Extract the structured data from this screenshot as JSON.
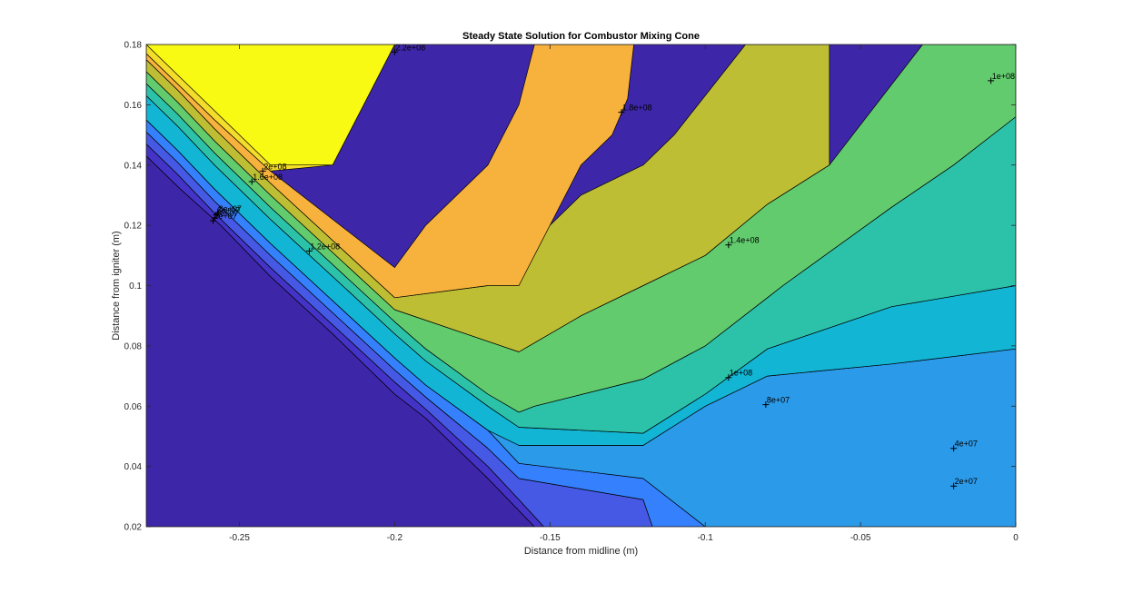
{
  "chart_data": {
    "type": "contour",
    "title": "Steady State Solution for Combustor Mixing Cone",
    "xlabel": "Distance from midline (m)",
    "ylabel": "Distance from igniter (m)",
    "xlim": [
      -0.28,
      0
    ],
    "ylim": [
      0.02,
      0.18
    ],
    "xticks": [
      -0.25,
      -0.2,
      -0.15,
      -0.1,
      -0.05,
      0
    ],
    "xtick_labels": [
      "-0.25",
      "-0.2",
      "-0.15",
      "-0.1",
      "-0.05",
      "0"
    ],
    "yticks": [
      0.02,
      0.04,
      0.06,
      0.08,
      0.1,
      0.12,
      0.14,
      0.16,
      0.18
    ],
    "ytick_labels": [
      "0.02",
      "0.04",
      "0.06",
      "0.08",
      "0.1",
      "0.12",
      "0.14",
      "0.16",
      "0.18"
    ],
    "grid": false,
    "colormap": "parula",
    "levels": [
      20000000,
      40000000,
      60000000,
      80000000,
      100000000,
      120000000,
      140000000,
      160000000,
      180000000,
      200000000,
      220000000
    ],
    "band_colors": [
      "#3e26a8",
      "#4433c7",
      "#4659e5",
      "#3580fd",
      "#2b9ae9",
      "#12b5d4",
      "#2cc2a9",
      "#62cb6e",
      "#bdbe34",
      "#f6b23c",
      "#f4dc2a",
      "#f9fa14"
    ],
    "band_polygons": [
      [
        [
          -0.28,
          0.143
        ],
        [
          -0.269,
          0.132
        ],
        [
          -0.256,
          0.12
        ],
        [
          -0.24,
          0.103
        ],
        [
          -0.22,
          0.084
        ],
        [
          -0.2,
          0.064
        ],
        [
          -0.19,
          0.056
        ],
        [
          -0.17,
          0.036
        ],
        [
          -0.155,
          0.02
        ],
        [
          -0.28,
          0.02
        ]
      ],
      [
        [
          -0.28,
          0.147
        ],
        [
          -0.27,
          0.137
        ],
        [
          -0.258,
          0.124
        ],
        [
          -0.24,
          0.106
        ],
        [
          -0.22,
          0.087
        ],
        [
          -0.2,
          0.068
        ],
        [
          -0.19,
          0.059
        ],
        [
          -0.17,
          0.04
        ],
        [
          -0.16,
          0.029
        ],
        [
          -0.152,
          0.02
        ],
        [
          -0.155,
          0.02
        ],
        [
          -0.17,
          0.036
        ],
        [
          -0.19,
          0.056
        ],
        [
          -0.2,
          0.064
        ],
        [
          -0.22,
          0.084
        ],
        [
          -0.24,
          0.103
        ],
        [
          -0.256,
          0.12
        ],
        [
          -0.269,
          0.132
        ],
        [
          -0.28,
          0.143
        ]
      ],
      [
        [
          -0.28,
          0.151
        ],
        [
          -0.27,
          0.141
        ],
        [
          -0.258,
          0.128
        ],
        [
          -0.24,
          0.11
        ],
        [
          -0.22,
          0.091
        ],
        [
          -0.2,
          0.072
        ],
        [
          -0.19,
          0.063
        ],
        [
          -0.17,
          0.046
        ],
        [
          -0.16,
          0.036
        ],
        [
          -0.12,
          0.029
        ],
        [
          -0.117,
          0.02
        ],
        [
          -0.152,
          0.02
        ],
        [
          -0.16,
          0.029
        ],
        [
          -0.17,
          0.04
        ],
        [
          -0.19,
          0.059
        ],
        [
          -0.2,
          0.068
        ],
        [
          -0.22,
          0.087
        ],
        [
          -0.24,
          0.106
        ],
        [
          -0.258,
          0.124
        ],
        [
          -0.27,
          0.137
        ],
        [
          -0.28,
          0.147
        ]
      ],
      [
        [
          -0.28,
          0.155
        ],
        [
          -0.27,
          0.145
        ],
        [
          -0.258,
          0.132
        ],
        [
          -0.24,
          0.114
        ],
        [
          -0.22,
          0.095
        ],
        [
          -0.2,
          0.076
        ],
        [
          -0.19,
          0.067
        ],
        [
          -0.17,
          0.052
        ],
        [
          -0.16,
          0.041
        ],
        [
          -0.12,
          0.036
        ],
        [
          -0.1,
          0.02
        ],
        [
          -0.117,
          0.02
        ],
        [
          -0.12,
          0.029
        ],
        [
          -0.16,
          0.036
        ],
        [
          -0.17,
          0.046
        ],
        [
          -0.19,
          0.063
        ],
        [
          -0.2,
          0.072
        ],
        [
          -0.22,
          0.091
        ],
        [
          -0.24,
          0.11
        ],
        [
          -0.258,
          0.128
        ],
        [
          -0.27,
          0.141
        ],
        [
          -0.28,
          0.151
        ]
      ],
      [
        [
          -0.28,
          0.159
        ],
        [
          -0.27,
          0.149
        ],
        [
          -0.258,
          0.136
        ],
        [
          -0.24,
          0.118
        ],
        [
          -0.22,
          0.099
        ],
        [
          -0.2,
          0.08
        ],
        [
          -0.19,
          0.071
        ],
        [
          -0.17,
          0.056
        ],
        [
          -0.16,
          0.047
        ],
        [
          -0.12,
          0.047
        ],
        [
          -0.1,
          0.06
        ],
        [
          -0.08,
          0.07
        ],
        [
          -0.04,
          0.074
        ],
        [
          0,
          0.079
        ],
        [
          0,
          0.02
        ],
        [
          -0.1,
          0.02
        ],
        [
          -0.12,
          0.036
        ],
        [
          -0.16,
          0.041
        ],
        [
          -0.17,
          0.052
        ],
        [
          -0.19,
          0.067
        ],
        [
          -0.2,
          0.076
        ],
        [
          -0.22,
          0.095
        ],
        [
          -0.24,
          0.114
        ],
        [
          -0.258,
          0.132
        ],
        [
          -0.27,
          0.145
        ],
        [
          -0.28,
          0.155
        ]
      ],
      [
        [
          -0.28,
          0.163
        ],
        [
          -0.27,
          0.153
        ],
        [
          -0.258,
          0.14
        ],
        [
          -0.24,
          0.122
        ],
        [
          -0.22,
          0.103
        ],
        [
          -0.2,
          0.084
        ],
        [
          -0.19,
          0.075
        ],
        [
          -0.17,
          0.06
        ],
        [
          -0.16,
          0.053
        ],
        [
          -0.12,
          0.051
        ],
        [
          -0.1,
          0.064
        ],
        [
          -0.08,
          0.079
        ],
        [
          -0.04,
          0.093
        ],
        [
          0,
          0.1
        ],
        [
          0,
          0.079
        ],
        [
          -0.04,
          0.074
        ],
        [
          -0.08,
          0.07
        ],
        [
          -0.1,
          0.06
        ],
        [
          -0.12,
          0.047
        ],
        [
          -0.16,
          0.047
        ],
        [
          -0.17,
          0.052
        ],
        [
          -0.19,
          0.067
        ],
        [
          -0.2,
          0.076
        ],
        [
          -0.22,
          0.095
        ],
        [
          -0.24,
          0.114
        ],
        [
          -0.258,
          0.132
        ],
        [
          -0.27,
          0.145
        ],
        [
          -0.28,
          0.155
        ],
        [
          -0.28,
          0.159
        ]
      ],
      [
        [
          -0.28,
          0.167
        ],
        [
          -0.27,
          0.157
        ],
        [
          -0.258,
          0.144
        ],
        [
          -0.24,
          0.126
        ],
        [
          -0.22,
          0.107
        ],
        [
          -0.2,
          0.088
        ],
        [
          -0.19,
          0.079
        ],
        [
          -0.17,
          0.064
        ],
        [
          -0.16,
          0.058
        ],
        [
          -0.155,
          0.06
        ],
        [
          -0.12,
          0.069
        ],
        [
          -0.1,
          0.08
        ],
        [
          -0.08,
          0.096
        ],
        [
          -0.075,
          0.1
        ],
        [
          -0.04,
          0.126
        ],
        [
          -0.02,
          0.14
        ],
        [
          0,
          0.156
        ],
        [
          0,
          0.1
        ],
        [
          -0.04,
          0.093
        ],
        [
          -0.08,
          0.079
        ],
        [
          -0.1,
          0.064
        ],
        [
          -0.12,
          0.051
        ],
        [
          -0.16,
          0.053
        ],
        [
          -0.17,
          0.06
        ],
        [
          -0.19,
          0.075
        ],
        [
          -0.2,
          0.084
        ],
        [
          -0.22,
          0.103
        ],
        [
          -0.24,
          0.122
        ],
        [
          -0.258,
          0.14
        ],
        [
          -0.27,
          0.153
        ],
        [
          -0.28,
          0.163
        ]
      ],
      [
        [
          -0.28,
          0.171
        ],
        [
          -0.27,
          0.161
        ],
        [
          -0.258,
          0.148
        ],
        [
          -0.24,
          0.13
        ],
        [
          -0.22,
          0.111
        ],
        [
          -0.2,
          0.092
        ],
        [
          -0.16,
          0.078
        ],
        [
          -0.14,
          0.09
        ],
        [
          -0.12,
          0.1
        ],
        [
          -0.1,
          0.11
        ],
        [
          -0.08,
          0.127
        ],
        [
          -0.06,
          0.14
        ],
        [
          -0.03,
          0.18
        ],
        [
          0,
          0.18
        ],
        [
          0,
          0.156
        ],
        [
          -0.02,
          0.14
        ],
        [
          -0.04,
          0.126
        ],
        [
          -0.075,
          0.1
        ],
        [
          -0.08,
          0.096
        ],
        [
          -0.1,
          0.08
        ],
        [
          -0.12,
          0.069
        ],
        [
          -0.155,
          0.06
        ],
        [
          -0.16,
          0.058
        ],
        [
          -0.17,
          0.064
        ],
        [
          -0.19,
          0.079
        ],
        [
          -0.2,
          0.088
        ],
        [
          -0.22,
          0.107
        ],
        [
          -0.24,
          0.126
        ],
        [
          -0.258,
          0.144
        ],
        [
          -0.27,
          0.157
        ],
        [
          -0.28,
          0.167
        ]
      ],
      [
        [
          -0.28,
          0.175
        ],
        [
          -0.27,
          0.165
        ],
        [
          -0.258,
          0.152
        ],
        [
          -0.24,
          0.134
        ],
        [
          -0.22,
          0.115
        ],
        [
          -0.2,
          0.096
        ],
        [
          -0.17,
          0.1
        ],
        [
          -0.15,
          0.12
        ],
        [
          -0.14,
          0.13
        ],
        [
          -0.12,
          0.14
        ],
        [
          -0.11,
          0.15
        ],
        [
          -0.087,
          0.18
        ],
        [
          -0.06,
          0.18
        ],
        [
          -0.06,
          0.14
        ],
        [
          -0.08,
          0.127
        ],
        [
          -0.1,
          0.11
        ],
        [
          -0.12,
          0.1
        ],
        [
          -0.14,
          0.09
        ],
        [
          -0.16,
          0.078
        ],
        [
          -0.2,
          0.092
        ],
        [
          -0.22,
          0.111
        ],
        [
          -0.24,
          0.13
        ],
        [
          -0.258,
          0.148
        ],
        [
          -0.27,
          0.161
        ],
        [
          -0.28,
          0.171
        ]
      ],
      [
        [
          -0.28,
          0.177
        ],
        [
          -0.27,
          0.167
        ],
        [
          -0.258,
          0.155
        ],
        [
          -0.24,
          0.138
        ],
        [
          -0.2,
          0.106
        ],
        [
          -0.19,
          0.12
        ],
        [
          -0.17,
          0.14
        ],
        [
          -0.16,
          0.16
        ],
        [
          -0.155,
          0.18
        ],
        [
          -0.123,
          0.18
        ],
        [
          -0.125,
          0.162
        ],
        [
          -0.13,
          0.15
        ],
        [
          -0.14,
          0.14
        ],
        [
          -0.16,
          0.1
        ],
        [
          -0.17,
          0.1
        ],
        [
          -0.2,
          0.096
        ],
        [
          -0.22,
          0.115
        ],
        [
          -0.24,
          0.134
        ],
        [
          -0.258,
          0.152
        ],
        [
          -0.27,
          0.165
        ],
        [
          -0.28,
          0.175
        ]
      ],
      [
        [
          -0.28,
          0.18
        ],
        [
          -0.2,
          0.18
        ],
        [
          -0.21,
          0.16
        ],
        [
          -0.22,
          0.14
        ],
        [
          -0.23,
          0.139
        ],
        [
          -0.24,
          0.138
        ],
        [
          -0.258,
          0.155
        ],
        [
          -0.27,
          0.167
        ],
        [
          -0.28,
          0.177
        ]
      ],
      [
        [
          -0.28,
          0.18
        ],
        [
          -0.2,
          0.18
        ],
        [
          -0.21,
          0.16
        ],
        [
          -0.22,
          0.14
        ],
        [
          -0.24,
          0.14
        ]
      ]
    ],
    "contour_labels": [
      {
        "text": "2.2e+08",
        "x": -0.2,
        "y": 0.1775
      },
      {
        "text": "1.8e+08",
        "x": -0.127,
        "y": 0.1575
      },
      {
        "text": "1e+08",
        "x": -0.008,
        "y": 0.168
      },
      {
        "text": "2e+08",
        "x": -0.2425,
        "y": 0.138
      },
      {
        "text": "1.6e+08",
        "x": -0.246,
        "y": 0.1345
      },
      {
        "text": "8e+07",
        "x": -0.257,
        "y": 0.124
      },
      {
        "text": "6e+07",
        "x": -0.2575,
        "y": 0.1235
      },
      {
        "text": "4e+07",
        "x": -0.258,
        "y": 0.1225
      },
      {
        "text": "2e+07",
        "x": -0.2585,
        "y": 0.1215
      },
      {
        "text": "1.2e+08",
        "x": -0.2275,
        "y": 0.1115
      },
      {
        "text": "1.4e+08",
        "x": -0.0925,
        "y": 0.1135
      },
      {
        "text": "1e+08",
        "x": -0.0925,
        "y": 0.0695
      },
      {
        "text": "8e+07",
        "x": -0.0805,
        "y": 0.0605
      },
      {
        "text": "4e+07",
        "x": -0.02,
        "y": 0.046
      },
      {
        "text": "2e+07",
        "x": -0.02,
        "y": 0.0335
      }
    ]
  }
}
